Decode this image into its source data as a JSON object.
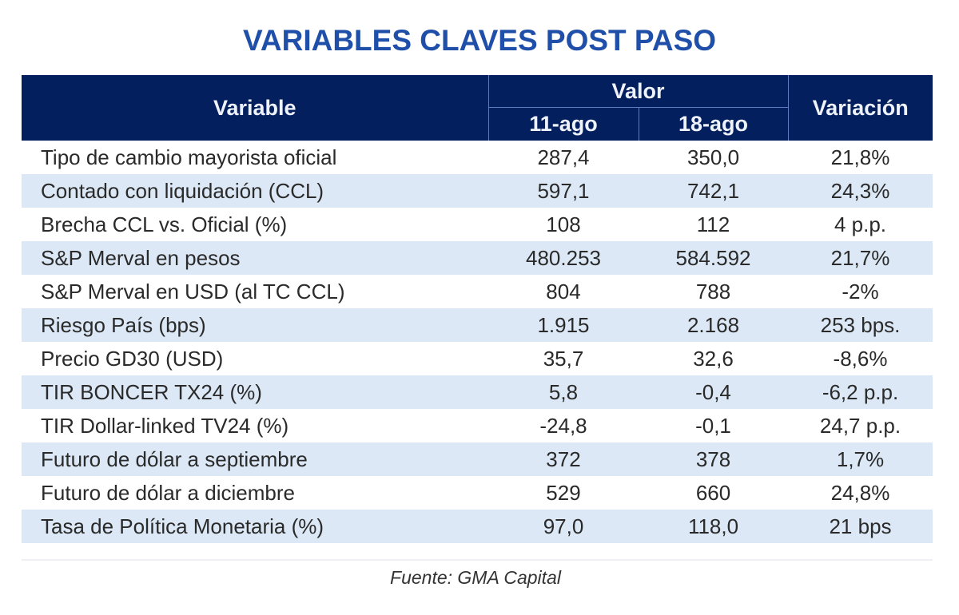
{
  "title": "VARIABLES CLAVES POST PASO",
  "header": {
    "variable": "Variable",
    "valor": "Valor",
    "date1": "11-ago",
    "date2": "18-ago",
    "variacion": "Variación"
  },
  "rows": [
    {
      "variable": "Tipo de cambio mayorista oficial",
      "v1": "287,4",
      "v2": "350,0",
      "var": "21,8%"
    },
    {
      "variable": "Contado con liquidación (CCL)",
      "v1": "597,1",
      "v2": "742,1",
      "var": "24,3%"
    },
    {
      "variable": "Brecha CCL vs. Oficial (%)",
      "v1": "108",
      "v2": "112",
      "var": "4 p.p."
    },
    {
      "variable": "S&P Merval en pesos",
      "v1": "480.253",
      "v2": "584.592",
      "var": "21,7%"
    },
    {
      "variable": "S&P Merval en USD (al TC CCL)",
      "v1": "804",
      "v2": "788",
      "var": "-2%"
    },
    {
      "variable": "Riesgo País (bps)",
      "v1": "1.915",
      "v2": "2.168",
      "var": "253 bps."
    },
    {
      "variable": "Precio GD30 (USD)",
      "v1": "35,7",
      "v2": "32,6",
      "var": "-8,6%"
    },
    {
      "variable": "TIR BONCER TX24 (%)",
      "v1": "5,8",
      "v2": "-0,4",
      "var": "-6,2 p.p."
    },
    {
      "variable": "TIR Dollar-linked TV24 (%)",
      "v1": "-24,8",
      "v2": "-0,1",
      "var": "24,7 p.p."
    },
    {
      "variable": "Futuro de dólar a septiembre",
      "v1": "372",
      "v2": "378",
      "var": "1,7%"
    },
    {
      "variable": "Futuro de dólar a diciembre",
      "v1": "529",
      "v2": "660",
      "var": "24,8%"
    },
    {
      "variable": "Tasa de Política Monetaria (%)",
      "v1": "97,0",
      "v2": "118,0",
      "var": "21 bps"
    }
  ],
  "source": "Fuente: GMA Capital",
  "colors": {
    "title": "#1f4fa8",
    "header_bg": "#031f5e",
    "alt_row_bg": "#dce8f5"
  }
}
